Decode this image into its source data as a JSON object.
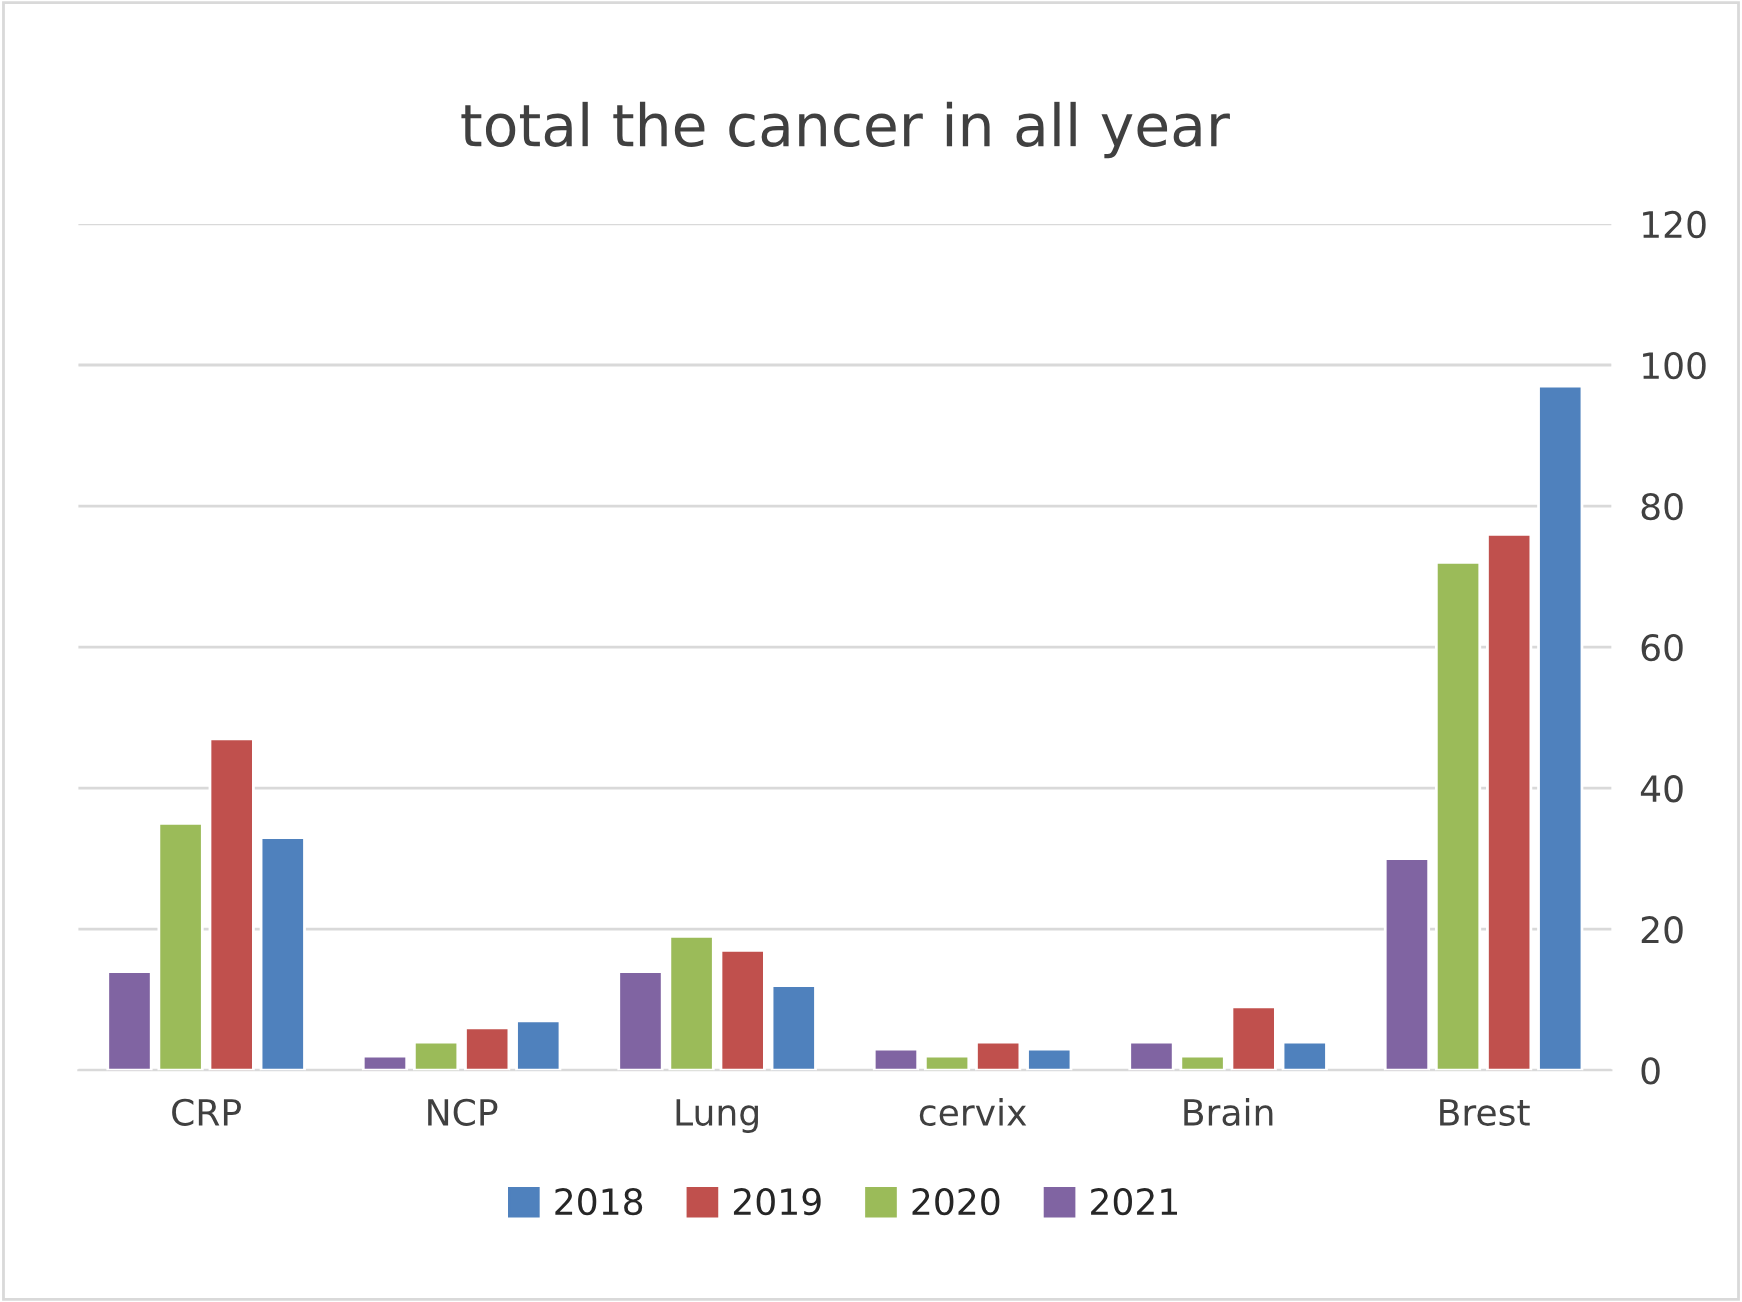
{
  "chart_data": {
    "type": "bar",
    "title": "total the cancer in all year",
    "categories": [
      "CRP",
      "NCP",
      "Lung",
      "cervix",
      "Brain",
      "Brest"
    ],
    "series": [
      {
        "name": "2021",
        "color": "#8064a2",
        "values": [
          14,
          2,
          14,
          3,
          4,
          30
        ]
      },
      {
        "name": "2020",
        "color": "#9bbb59",
        "values": [
          35,
          4,
          19,
          2,
          2,
          72
        ]
      },
      {
        "name": "2019",
        "color": "#c0504d",
        "values": [
          47,
          6,
          17,
          4,
          9,
          76
        ]
      },
      {
        "name": "2018",
        "color": "#4f81bd",
        "values": [
          33,
          7,
          12,
          3,
          4,
          97
        ]
      }
    ],
    "ylim": [
      0,
      120
    ],
    "yticks": [
      0,
      20,
      40,
      60,
      80,
      100,
      120
    ],
    "grid": "y",
    "legend": "bottom"
  }
}
